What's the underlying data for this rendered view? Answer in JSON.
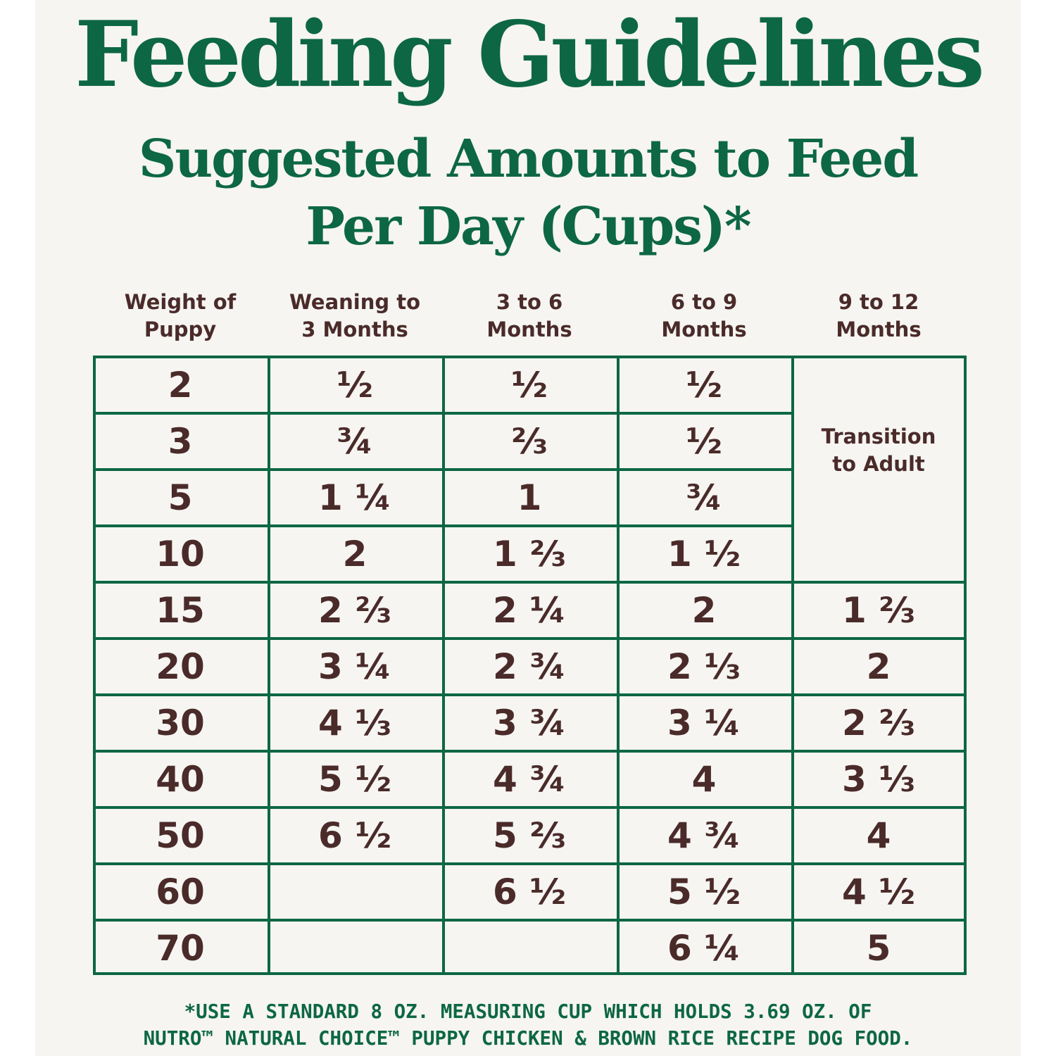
{
  "title": "Feeding Guidelines",
  "subtitle": {
    "line1": "Suggested Amounts to Feed",
    "line2": "Per Day (Cups)*"
  },
  "columns": [
    {
      "line1": "Weight of",
      "line2": "Puppy"
    },
    {
      "line1": "Weaning to",
      "line2": "3 Months"
    },
    {
      "line1": "3 to 6",
      "line2": "Months"
    },
    {
      "line1": "6 to 9",
      "line2": "Months"
    },
    {
      "line1": "9 to 12",
      "line2": "Months"
    }
  ],
  "transition_note": {
    "line1": "Transition",
    "line2": "to Adult"
  },
  "rows": [
    {
      "weight": "2",
      "weaning": "½",
      "m3_6": "½",
      "m6_9": "½",
      "m9_12": null
    },
    {
      "weight": "3",
      "weaning": "¾",
      "m3_6": "⅔",
      "m6_9": "½",
      "m9_12": null
    },
    {
      "weight": "5",
      "weaning": "1 ¼",
      "m3_6": "1",
      "m6_9": "¾",
      "m9_12": null
    },
    {
      "weight": "10",
      "weaning": "2",
      "m3_6": "1 ⅔",
      "m6_9": "1 ½",
      "m9_12": null
    },
    {
      "weight": "15",
      "weaning": "2 ⅔",
      "m3_6": "2 ¼",
      "m6_9": "2",
      "m9_12": "1 ⅔"
    },
    {
      "weight": "20",
      "weaning": "3 ¼",
      "m3_6": "2 ¾",
      "m6_9": "2 ⅓",
      "m9_12": "2"
    },
    {
      "weight": "30",
      "weaning": "4 ⅓",
      "m3_6": "3 ¾",
      "m6_9": "3 ¼",
      "m9_12": "2 ⅔"
    },
    {
      "weight": "40",
      "weaning": "5 ½",
      "m3_6": "4 ¾",
      "m6_9": "4",
      "m9_12": "3 ⅓"
    },
    {
      "weight": "50",
      "weaning": "6 ½",
      "m3_6": "5 ⅔",
      "m6_9": "4 ¾",
      "m9_12": "4"
    },
    {
      "weight": "60",
      "weaning": "",
      "m3_6": "6 ½",
      "m6_9": "5 ½",
      "m9_12": "4 ½"
    },
    {
      "weight": "70",
      "weaning": "",
      "m3_6": "",
      "m6_9": "6 ¼",
      "m9_12": "5"
    }
  ],
  "footnote": {
    "line1": "*USE A STANDARD 8 OZ. MEASURING CUP WHICH HOLDS 3.69 OZ. OF",
    "line2": "NUTRO™ NATURAL CHOICE™ PUPPY CHICKEN & BROWN RICE RECIPE DOG FOOD."
  },
  "colors": {
    "green": "#0d6744",
    "text_brown": "#4a2b2a",
    "background": "#f6f5f1"
  }
}
